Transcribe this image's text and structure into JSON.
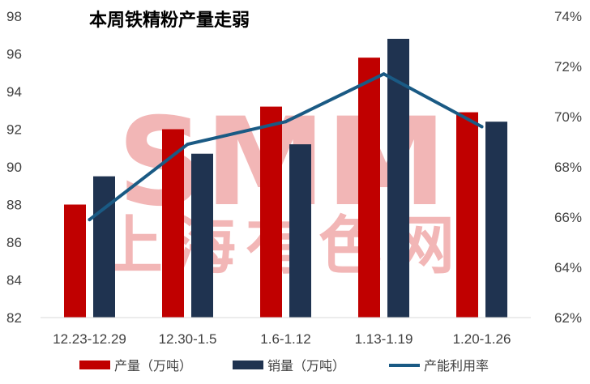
{
  "chart_data": {
    "type": "bar",
    "title": "本周铁精粉产量走弱",
    "categories": [
      "12.23-12.29",
      "12.30-1.5",
      "1.6-1.12",
      "1.13-1.19",
      "1.20-1.26"
    ],
    "ylim": [
      82,
      98
    ],
    "y_ticks": [
      "82",
      "84",
      "86",
      "88",
      "90",
      "92",
      "94",
      "96",
      "98"
    ],
    "y2lim": [
      62,
      74
    ],
    "y2_ticks": [
      "62%",
      "64%",
      "66%",
      "68%",
      "70%",
      "72%",
      "74%"
    ],
    "grid": false,
    "legend_position": "bottom",
    "series": [
      {
        "name": "产量（万吨）",
        "kind": "bar",
        "axis": "left",
        "color": "#c00000",
        "values": [
          88.0,
          92.0,
          93.2,
          95.8,
          92.9
        ]
      },
      {
        "name": "销量（万吨）",
        "kind": "bar",
        "axis": "left",
        "color": "#1f3350",
        "values": [
          89.5,
          90.7,
          91.2,
          96.8,
          92.4
        ]
      },
      {
        "name": "产能利用率",
        "kind": "line",
        "axis": "right",
        "color": "#1a5a84",
        "values": [
          65.9,
          68.9,
          69.8,
          71.7,
          69.6
        ]
      }
    ]
  },
  "watermark": {
    "logo": "SMM",
    "text": "上海有色网"
  }
}
